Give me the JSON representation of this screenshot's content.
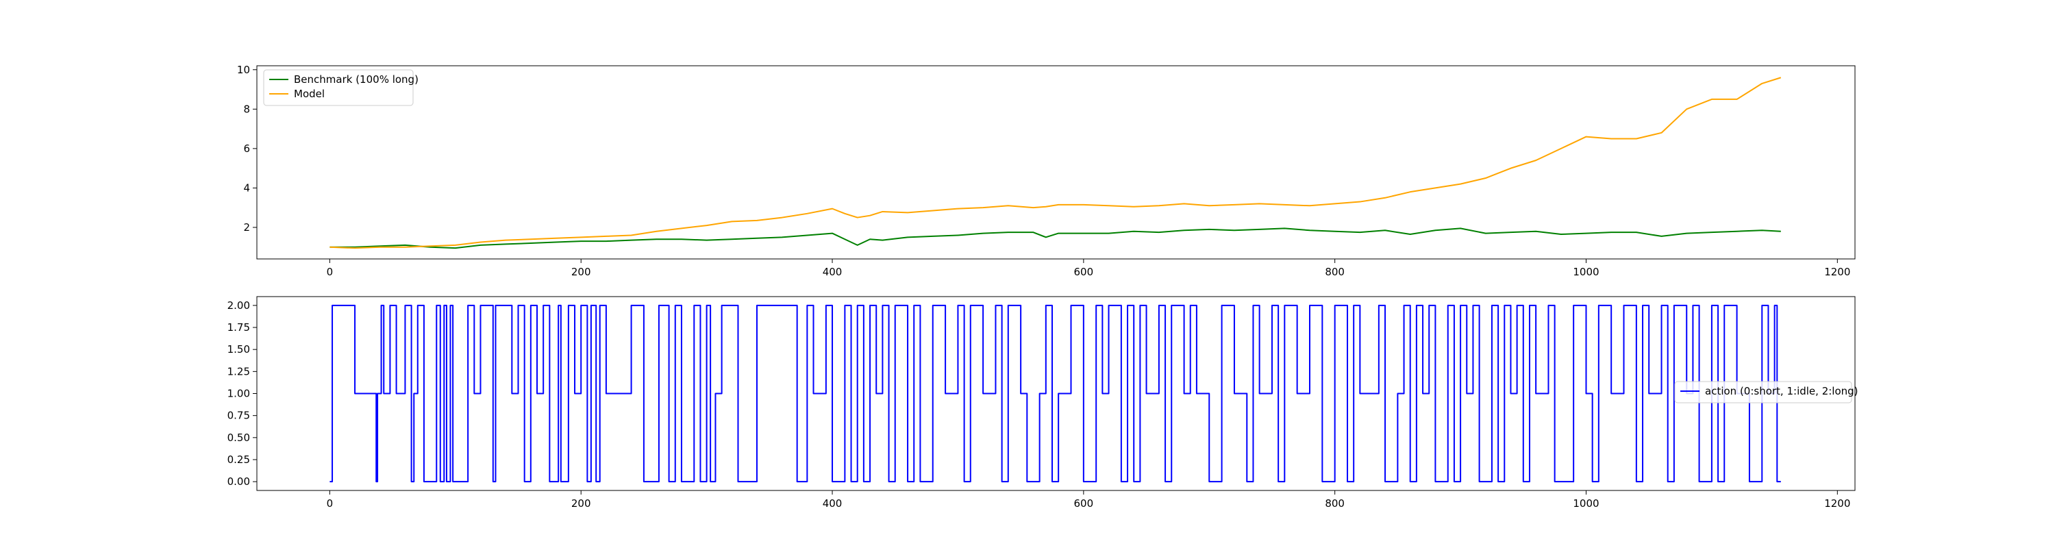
{
  "chart_data": [
    {
      "type": "line",
      "title": "",
      "xlabel": "",
      "ylabel": "",
      "xlim": [
        -58,
        1214
      ],
      "ylim": [
        0.4,
        10.2
      ],
      "xticks": [
        0,
        200,
        400,
        600,
        800,
        1000,
        1200
      ],
      "yticks": [
        2,
        4,
        6,
        8,
        10
      ],
      "legend": "top-left",
      "grid": false,
      "series": [
        {
          "name": "Benchmark (100% long)",
          "color": "#008000",
          "x": [
            0,
            20,
            40,
            60,
            80,
            100,
            120,
            140,
            160,
            180,
            200,
            220,
            240,
            260,
            280,
            300,
            320,
            340,
            360,
            380,
            400,
            410,
            420,
            430,
            440,
            460,
            480,
            500,
            520,
            540,
            560,
            570,
            580,
            600,
            620,
            640,
            660,
            680,
            700,
            720,
            740,
            760,
            780,
            800,
            820,
            840,
            860,
            880,
            900,
            920,
            940,
            960,
            980,
            1000,
            1020,
            1040,
            1060,
            1080,
            1100,
            1120,
            1140,
            1155
          ],
          "y": [
            1.0,
            1.0,
            1.05,
            1.1,
            1.0,
            0.95,
            1.1,
            1.15,
            1.2,
            1.25,
            1.3,
            1.3,
            1.35,
            1.4,
            1.4,
            1.35,
            1.4,
            1.45,
            1.5,
            1.6,
            1.7,
            1.4,
            1.1,
            1.4,
            1.35,
            1.5,
            1.55,
            1.6,
            1.7,
            1.75,
            1.75,
            1.5,
            1.7,
            1.7,
            1.7,
            1.8,
            1.75,
            1.85,
            1.9,
            1.85,
            1.9,
            1.95,
            1.85,
            1.8,
            1.75,
            1.85,
            1.65,
            1.85,
            1.95,
            1.7,
            1.75,
            1.8,
            1.65,
            1.7,
            1.75,
            1.75,
            1.55,
            1.7,
            1.75,
            1.8,
            1.85,
            1.8
          ]
        },
        {
          "name": "Model",
          "color": "#ffa500",
          "x": [
            0,
            20,
            40,
            60,
            80,
            100,
            120,
            140,
            160,
            180,
            200,
            220,
            240,
            260,
            280,
            300,
            320,
            340,
            360,
            380,
            400,
            410,
            420,
            430,
            440,
            460,
            480,
            500,
            520,
            540,
            560,
            570,
            580,
            600,
            620,
            640,
            660,
            680,
            700,
            720,
            740,
            760,
            780,
            800,
            820,
            840,
            860,
            880,
            900,
            920,
            940,
            960,
            980,
            1000,
            1020,
            1040,
            1060,
            1080,
            1100,
            1120,
            1140,
            1155
          ],
          "y": [
            1.0,
            0.95,
            1.0,
            1.0,
            1.05,
            1.1,
            1.25,
            1.35,
            1.4,
            1.45,
            1.5,
            1.55,
            1.6,
            1.8,
            1.95,
            2.1,
            2.3,
            2.35,
            2.5,
            2.7,
            2.95,
            2.7,
            2.5,
            2.6,
            2.8,
            2.75,
            2.85,
            2.95,
            3.0,
            3.1,
            3.0,
            3.05,
            3.15,
            3.15,
            3.1,
            3.05,
            3.1,
            3.2,
            3.1,
            3.15,
            3.2,
            3.15,
            3.1,
            3.2,
            3.3,
            3.5,
            3.8,
            4.0,
            4.2,
            4.5,
            5.0,
            5.4,
            6.0,
            6.6,
            6.5,
            6.5,
            6.8,
            8.0,
            8.5,
            8.5,
            9.3,
            9.6
          ]
        }
      ]
    },
    {
      "type": "line",
      "title": "",
      "xlabel": "",
      "ylabel": "",
      "xlim": [
        -58,
        1214
      ],
      "ylim": [
        -0.1,
        2.1
      ],
      "xticks": [
        0,
        200,
        400,
        600,
        800,
        1000,
        1200
      ],
      "yticks": [
        0.0,
        0.25,
        0.5,
        0.75,
        1.0,
        1.25,
        1.5,
        1.75,
        2.0
      ],
      "ytick_labels": [
        "0.00",
        "0.25",
        "0.50",
        "0.75",
        "1.00",
        "1.25",
        "1.50",
        "1.75",
        "2.00"
      ],
      "legend": "center-right",
      "grid": false,
      "series": [
        {
          "name": "action (0:short, 1:idle, 2:long)",
          "color": "#0000ff",
          "step_x": [
            0,
            2,
            20,
            37,
            38,
            41,
            43,
            48,
            53,
            60,
            65,
            67,
            70,
            75,
            85,
            88,
            91,
            93,
            96,
            98,
            110,
            115,
            120,
            130,
            132,
            145,
            150,
            155,
            160,
            165,
            170,
            175,
            182,
            184,
            190,
            195,
            200,
            205,
            208,
            212,
            215,
            220,
            240,
            250,
            262,
            270,
            275,
            280,
            290,
            295,
            300,
            303,
            307,
            312,
            325,
            340,
            372,
            380,
            385,
            395,
            400,
            410,
            415,
            420,
            425,
            430,
            435,
            440,
            445,
            450,
            460,
            465,
            470,
            480,
            490,
            500,
            505,
            510,
            520,
            530,
            535,
            540,
            550,
            555,
            565,
            570,
            575,
            580,
            590,
            600,
            610,
            615,
            620,
            630,
            635,
            640,
            645,
            650,
            660,
            665,
            670,
            680,
            685,
            690,
            700,
            710,
            720,
            730,
            735,
            740,
            750,
            755,
            760,
            770,
            780,
            790,
            800,
            810,
            815,
            820,
            835,
            840,
            850,
            855,
            860,
            865,
            870,
            875,
            880,
            890,
            895,
            900,
            905,
            910,
            915,
            925,
            930,
            935,
            940,
            945,
            950,
            955,
            960,
            970,
            975,
            990,
            1000,
            1005,
            1010,
            1020,
            1030,
            1040,
            1045,
            1050,
            1060,
            1065,
            1070,
            1080,
            1085,
            1090,
            1100,
            1105,
            1110,
            1120,
            1130,
            1140,
            1145,
            1150,
            1152,
            1155
          ],
          "step_y": [
            0,
            2,
            1,
            0,
            1,
            2,
            1,
            2,
            1,
            2,
            0,
            1,
            2,
            0,
            2,
            0,
            2,
            0,
            2,
            0,
            2,
            1,
            2,
            0,
            2,
            1,
            2,
            0,
            2,
            1,
            2,
            0,
            2,
            0,
            2,
            1,
            2,
            0,
            2,
            0,
            2,
            1,
            2,
            0,
            2,
            0,
            2,
            0,
            2,
            0,
            2,
            0,
            1,
            2,
            0,
            2,
            0,
            2,
            1,
            2,
            0,
            2,
            0,
            2,
            0,
            2,
            1,
            2,
            0,
            2,
            0,
            2,
            0,
            2,
            1,
            2,
            0,
            2,
            1,
            2,
            0,
            2,
            1,
            0,
            1,
            2,
            0,
            1,
            2,
            0,
            2,
            1,
            2,
            0,
            2,
            0,
            2,
            1,
            2,
            0,
            2,
            1,
            2,
            1,
            0,
            2,
            1,
            0,
            2,
            1,
            2,
            0,
            2,
            1,
            2,
            0,
            2,
            0,
            2,
            1,
            2,
            0,
            1,
            2,
            0,
            2,
            1,
            2,
            0,
            2,
            0,
            2,
            1,
            2,
            0,
            2,
            0,
            2,
            1,
            2,
            0,
            2,
            1,
            2,
            0,
            2,
            1,
            0,
            2,
            1,
            2,
            0,
            2,
            1,
            2,
            0,
            2,
            1,
            2,
            0,
            2,
            0,
            2,
            1,
            0,
            2,
            1,
            2,
            0,
            0
          ]
        }
      ]
    }
  ]
}
